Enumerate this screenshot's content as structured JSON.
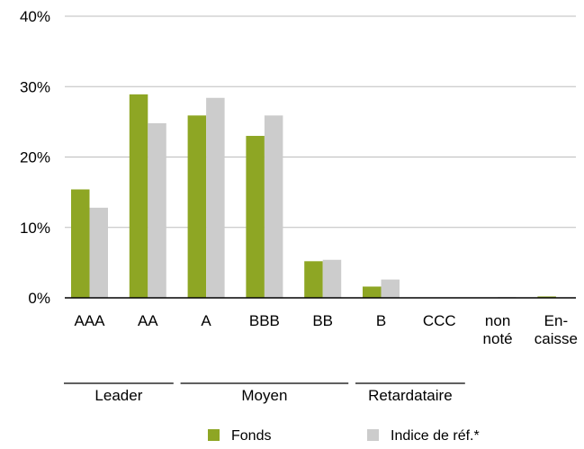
{
  "chart_data": {
    "type": "bar",
    "title": "",
    "xlabel": "",
    "ylabel": "",
    "ylim": [
      0,
      40
    ],
    "yticks": [
      0,
      10,
      20,
      30,
      40
    ],
    "ytick_labels": [
      "0%",
      "10%",
      "20%",
      "30%",
      "40%"
    ],
    "grid": true,
    "legend_position": "bottom",
    "categories": [
      [
        "AAA"
      ],
      [
        "AA"
      ],
      [
        "A"
      ],
      [
        "BBB"
      ],
      [
        "BB"
      ],
      [
        "B"
      ],
      [
        "CCC"
      ],
      [
        "non",
        "noté"
      ],
      [
        "En-",
        "caisse"
      ]
    ],
    "series": [
      {
        "name": "Fonds",
        "color": "#8ea624",
        "values": [
          15.4,
          28.9,
          25.9,
          23.0,
          5.2,
          1.6,
          0.0,
          0.0,
          0.2
        ]
      },
      {
        "name": "Indice de réf.*",
        "color": "#cccccc",
        "values": [
          12.8,
          24.8,
          28.4,
          25.9,
          5.4,
          2.6,
          0.0,
          0.1,
          0.0
        ]
      }
    ],
    "groups": [
      {
        "label": "Leader",
        "start": 0,
        "end": 1
      },
      {
        "label": "Moyen",
        "start": 2,
        "end": 4
      },
      {
        "label": "Retardataire",
        "start": 5,
        "end": 6
      }
    ]
  }
}
